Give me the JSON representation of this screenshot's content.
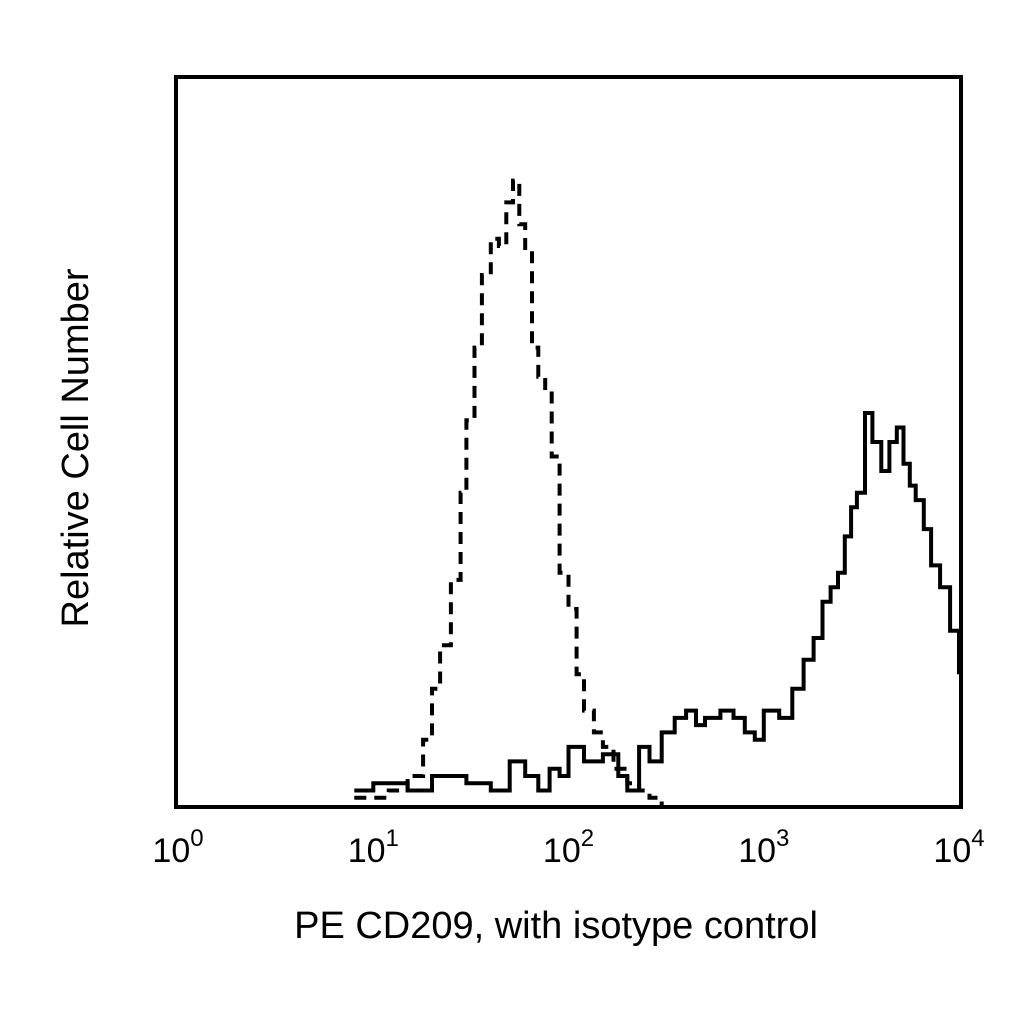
{
  "chart_data": {
    "type": "line",
    "chart_kind": "flow cytometry histogram",
    "title": "",
    "xlabel": "PE CD209, with isotype control",
    "ylabel": "Relative Cell Number",
    "x_scale": "log",
    "xlim": [
      1,
      10000
    ],
    "ylim": [
      0,
      100
    ],
    "y_ticks_shown": false,
    "grid": false,
    "legend": "none",
    "x_ticks": [
      {
        "value": 1,
        "base": "10",
        "exp": "0"
      },
      {
        "value": 10,
        "base": "10",
        "exp": "1"
      },
      {
        "value": 100,
        "base": "10",
        "exp": "2"
      },
      {
        "value": 1000,
        "base": "10",
        "exp": "3"
      },
      {
        "value": 10000,
        "base": "10",
        "exp": "4"
      }
    ],
    "series": [
      {
        "style": "dashed",
        "color": "#000000",
        "x": [
          8,
          10,
          12,
          15,
          18,
          20,
          22,
          25,
          28,
          30,
          33,
          36,
          40,
          44,
          48,
          52,
          56,
          60,
          65,
          70,
          76,
          82,
          90,
          100,
          110,
          120,
          135,
          150,
          170,
          200,
          230,
          260,
          300
        ],
        "y": [
          1,
          1,
          2,
          4,
          9,
          16,
          22,
          31,
          43,
          53,
          63,
          73,
          78,
          77,
          83,
          86,
          80,
          76,
          63,
          59,
          57,
          48,
          32,
          27,
          18,
          13,
          10,
          8,
          5,
          3,
          2,
          1,
          0
        ]
      },
      {
        "style": "solid",
        "color": "#000000",
        "x": [
          8,
          10,
          15,
          20,
          30,
          40,
          50,
          60,
          70,
          80,
          90,
          100,
          120,
          150,
          180,
          200,
          230,
          260,
          300,
          350,
          400,
          450,
          500,
          600,
          700,
          800,
          900,
          1000,
          1200,
          1400,
          1600,
          1800,
          2000,
          2200,
          2400,
          2600,
          2800,
          3000,
          3300,
          3600,
          4000,
          4400,
          4800,
          5200,
          5600,
          6000,
          6600,
          7200,
          8000,
          9000,
          10000,
          11000,
          12000
        ],
        "y": [
          2,
          3,
          2,
          4,
          3,
          2,
          6,
          4,
          2,
          5,
          4,
          8,
          6,
          7,
          4,
          2,
          8,
          6,
          10,
          12,
          13,
          11,
          12,
          13,
          12,
          10,
          9,
          13,
          12,
          16,
          20,
          23,
          28,
          30,
          32,
          37,
          41,
          43,
          54,
          50,
          46,
          50,
          52,
          47,
          44,
          42,
          38,
          33,
          30,
          24,
          19,
          20,
          18
        ]
      }
    ]
  }
}
